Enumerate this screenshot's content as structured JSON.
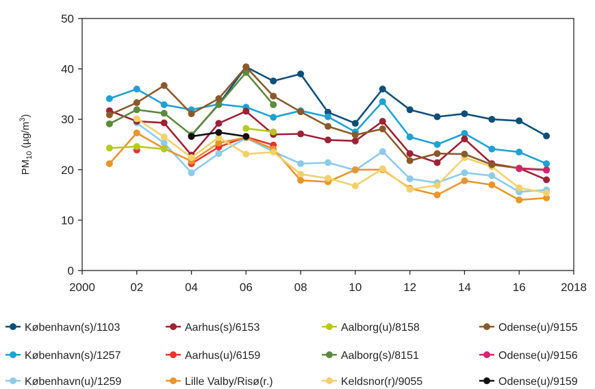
{
  "chart_data": {
    "type": "line",
    "ylabel": "PM10 (µg/m3)",
    "ylabel_parts": {
      "main": "PM",
      "sub": "10",
      "unit_open": " (µg/m",
      "sup": "3",
      "unit_close": ")"
    },
    "xlim": [
      2000,
      2018
    ],
    "ylim": [
      0,
      50
    ],
    "x_ticks": [
      2000,
      2002,
      2004,
      2006,
      2008,
      2010,
      2012,
      2014,
      2016,
      2018
    ],
    "x_tick_labels": [
      "2000",
      "02",
      "04",
      "06",
      "08",
      "10",
      "12",
      "14",
      "16",
      "2018"
    ],
    "y_ticks": [
      0,
      10,
      20,
      30,
      40,
      50
    ],
    "y_tick_labels": [
      "0",
      "10",
      "20",
      "30",
      "40",
      "50"
    ],
    "grid": false,
    "legend_position": "bottom",
    "series": [
      {
        "name": "København(s)/1103",
        "color": "#0d4f78",
        "points": [
          [
            2004,
            26.8
          ],
          [
            2005,
            33
          ],
          [
            2006,
            40.4
          ],
          [
            2007,
            37.6
          ],
          [
            2008,
            39
          ],
          [
            2009,
            31.4
          ],
          [
            2010,
            29.2
          ],
          [
            2011,
            36
          ],
          [
            2012,
            31.9
          ],
          [
            2013,
            30.5
          ],
          [
            2014,
            31.1
          ],
          [
            2015,
            30
          ],
          [
            2016,
            29.7
          ],
          [
            2017,
            26.7
          ]
        ]
      },
      {
        "name": "København(s)/1257",
        "color": "#1ea1d4",
        "points": [
          [
            2001,
            34.1
          ],
          [
            2002,
            36
          ],
          [
            2003,
            32.9
          ],
          [
            2004,
            31.9
          ],
          [
            2005,
            33
          ],
          [
            2006,
            32.4
          ],
          [
            2007,
            30.4
          ],
          [
            2008,
            31.7
          ],
          [
            2009,
            30.5
          ],
          [
            2010,
            27.5
          ],
          [
            2011,
            33.5
          ],
          [
            2012,
            26.5
          ],
          [
            2013,
            25
          ],
          [
            2014,
            27.2
          ],
          [
            2015,
            24.1
          ],
          [
            2016,
            23.5
          ],
          [
            2017,
            21.2
          ]
        ]
      },
      {
        "name": "København(u)/1259",
        "color": "#8ccbea",
        "points": [
          [
            2002,
            29.3
          ],
          [
            2003,
            25.3
          ],
          [
            2004,
            19.4
          ],
          [
            2005,
            23.2
          ],
          [
            2006,
            26.3
          ],
          [
            2007,
            23.6
          ],
          [
            2008,
            21.2
          ],
          [
            2009,
            21.4
          ],
          [
            2010,
            19.9
          ],
          [
            2011,
            23.6
          ],
          [
            2012,
            18.2
          ],
          [
            2013,
            17.4
          ],
          [
            2014,
            19.4
          ],
          [
            2015,
            18.8
          ],
          [
            2016,
            15.6
          ],
          [
            2017,
            16
          ]
        ]
      },
      {
        "name": "Aarhus(s)/6153",
        "color": "#9b2335",
        "points": [
          [
            2001,
            31.7
          ],
          [
            2002,
            29.6
          ],
          [
            2003,
            29.3
          ],
          [
            2004,
            22.9
          ],
          [
            2005,
            29.2
          ],
          [
            2006,
            31.6
          ],
          [
            2007,
            27
          ],
          [
            2008,
            27.1
          ],
          [
            2009,
            25.9
          ],
          [
            2010,
            25.7
          ],
          [
            2011,
            29.6
          ],
          [
            2012,
            23.2
          ],
          [
            2013,
            21.4
          ],
          [
            2014,
            26.1
          ],
          [
            2015,
            21.2
          ],
          [
            2016,
            20.3
          ],
          [
            2017,
            18
          ]
        ]
      },
      {
        "name": "Aarhus(u)/6159",
        "color": "#e8332a",
        "points": [
          [
            2002,
            23.9
          ],
          [
            null,
            null
          ],
          [
            2004,
            21.2
          ],
          [
            2005,
            24.5
          ],
          [
            2006,
            26.5
          ],
          [
            2007,
            24.9
          ]
        ]
      },
      {
        "name": "Lille Valby/Risø(r.)",
        "color": "#e8952b",
        "points": [
          [
            2001,
            21.2
          ],
          [
            2002,
            27.3
          ],
          [
            2003,
            24.2
          ],
          [
            2004,
            21.7
          ],
          [
            2005,
            25.3
          ],
          [
            2006,
            26.4
          ],
          [
            2007,
            24.1
          ],
          [
            2008,
            17.9
          ],
          [
            2009,
            17.6
          ],
          [
            2010,
            20
          ],
          [
            2011,
            20
          ],
          [
            2012,
            16.3
          ],
          [
            2013,
            15
          ],
          [
            2014,
            17.8
          ],
          [
            2015,
            17
          ],
          [
            2016,
            14
          ],
          [
            2017,
            14.4
          ]
        ]
      },
      {
        "name": "Aalborg(u)/8158",
        "color": "#b8c91e",
        "points": [
          [
            2001,
            24.3
          ],
          [
            2002,
            24.6
          ],
          [
            2003,
            24.1
          ],
          [
            null,
            null
          ],
          [
            2006,
            28.2
          ],
          [
            2007,
            27.5
          ]
        ]
      },
      {
        "name": "Aalborg(s)/8151",
        "color": "#5c8a3e",
        "points": [
          [
            2001,
            29.1
          ],
          [
            2002,
            31.9
          ],
          [
            2003,
            31.2
          ],
          [
            2004,
            26.9
          ],
          [
            2005,
            32.9
          ],
          [
            2006,
            39.3
          ],
          [
            2007,
            32.9
          ]
        ]
      },
      {
        "name": "Keldsnor(r)/9055",
        "color": "#f2d16b",
        "points": [
          [
            2002,
            30.1
          ],
          [
            2003,
            26.5
          ],
          [
            2004,
            22.4
          ],
          [
            2005,
            26.4
          ],
          [
            2006,
            23.1
          ],
          [
            2007,
            23.5
          ],
          [
            2008,
            19.1
          ],
          [
            2009,
            18.3
          ],
          [
            2010,
            16.8
          ],
          [
            2011,
            20.2
          ],
          [
            2012,
            16.1
          ],
          [
            2013,
            16.9
          ],
          [
            2014,
            22.4
          ],
          [
            2015,
            20.6
          ],
          [
            2016,
            16.4
          ],
          [
            2017,
            15.4
          ]
        ]
      },
      {
        "name": "Odense(u)/9155",
        "color": "#8a5a2b",
        "points": [
          [
            2001,
            30.9
          ],
          [
            2002,
            33.3
          ],
          [
            2003,
            36.7
          ],
          [
            2004,
            31.1
          ],
          [
            2005,
            34.1
          ],
          [
            2006,
            40.4
          ],
          [
            2007,
            34.6
          ],
          [
            2008,
            31.5
          ],
          [
            2009,
            28.6
          ],
          [
            2010,
            26.9
          ],
          [
            2011,
            28.1
          ],
          [
            2012,
            21.8
          ],
          [
            2013,
            23.2
          ],
          [
            2014,
            23.1
          ],
          [
            2015,
            21
          ],
          [
            2016,
            20.3
          ],
          [
            2017,
            20
          ]
        ]
      },
      {
        "name": "Odense(u)/9156",
        "color": "#d6246e",
        "points": [
          [
            2016,
            20.2
          ],
          [
            2017,
            19.9
          ]
        ]
      },
      {
        "name": "Odense(u)/9159",
        "color": "#111111",
        "points": [
          [
            2004,
            26.6
          ],
          [
            2005,
            27.4
          ],
          [
            2006,
            26.6
          ]
        ]
      }
    ],
    "legend_order": [
      "København(s)/1103",
      "Aarhus(s)/6153",
      "Aalborg(u)/8158",
      "Odense(u)/9155",
      "København(s)/1257",
      "Aarhus(u)/6159",
      "Aalborg(s)/8151",
      "Odense(u)/9156",
      "København(u)/1259",
      "Lille Valby/Risø(r.)",
      "Keldsnor(r)/9055",
      "Odense(u)/9159"
    ]
  }
}
